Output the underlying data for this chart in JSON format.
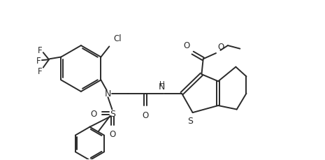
{
  "bg_color": "#ffffff",
  "line_color": "#2a2a2a",
  "line_width": 1.4,
  "figsize": [
    4.65,
    2.3
  ],
  "dpi": 100,
  "xlim": [
    -0.3,
    9.5
  ],
  "ylim": [
    0.2,
    5.2
  ]
}
